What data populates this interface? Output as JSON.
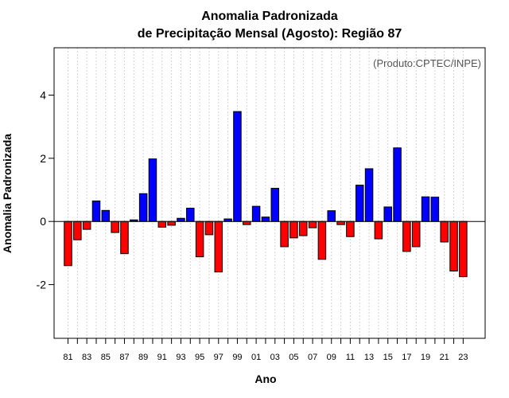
{
  "chart_data": {
    "type": "bar",
    "title": [
      "Anomalia Padronizada",
      "de Precipitação Mensal (Agosto): Região 87"
    ],
    "xlabel": "Ano",
    "ylabel": "Anomalia Padronizada",
    "annotation": "(Produto:CPTEC/INPE)",
    "ylim": [
      -3.7,
      5.5
    ],
    "yticks": [
      -2,
      0,
      2,
      4
    ],
    "ytick_labels": [
      "-2",
      "0",
      "2",
      "4"
    ],
    "xtick_labels": [
      "81",
      "83",
      "85",
      "87",
      "89",
      "91",
      "93",
      "95",
      "97",
      "99",
      "01",
      "03",
      "05",
      "07",
      "09",
      "11",
      "13",
      "15",
      "17",
      "19",
      "21",
      "23"
    ],
    "grid": true,
    "categories": [
      "81",
      "82",
      "83",
      "84",
      "85",
      "86",
      "87",
      "88",
      "89",
      "90",
      "91",
      "92",
      "93",
      "94",
      "95",
      "96",
      "97",
      "98",
      "99",
      "00",
      "01",
      "02",
      "03",
      "04",
      "05",
      "06",
      "07",
      "08",
      "09",
      "10",
      "11",
      "12",
      "13",
      "14",
      "15",
      "16",
      "17",
      "18",
      "19",
      "20",
      "21",
      "22",
      "23"
    ],
    "values": [
      -1.4,
      -0.58,
      -0.25,
      0.65,
      0.35,
      -0.35,
      -1.02,
      0.05,
      0.88,
      1.98,
      -0.18,
      -0.12,
      0.1,
      0.42,
      -1.12,
      -0.42,
      -1.6,
      0.08,
      3.48,
      -0.1,
      0.48,
      0.14,
      1.05,
      -0.8,
      -0.52,
      -0.45,
      -0.2,
      -1.2,
      0.34,
      -0.1,
      -0.48,
      1.15,
      1.67,
      -0.55,
      0.46,
      2.33,
      -0.95,
      -0.8,
      0.78,
      0.77,
      -0.65,
      -1.57,
      -1.75
    ],
    "colors": {
      "positive": "#0000ff",
      "negative": "#ff0000",
      "bar_edge": "#000000",
      "grid": "#d3d3d3"
    }
  }
}
